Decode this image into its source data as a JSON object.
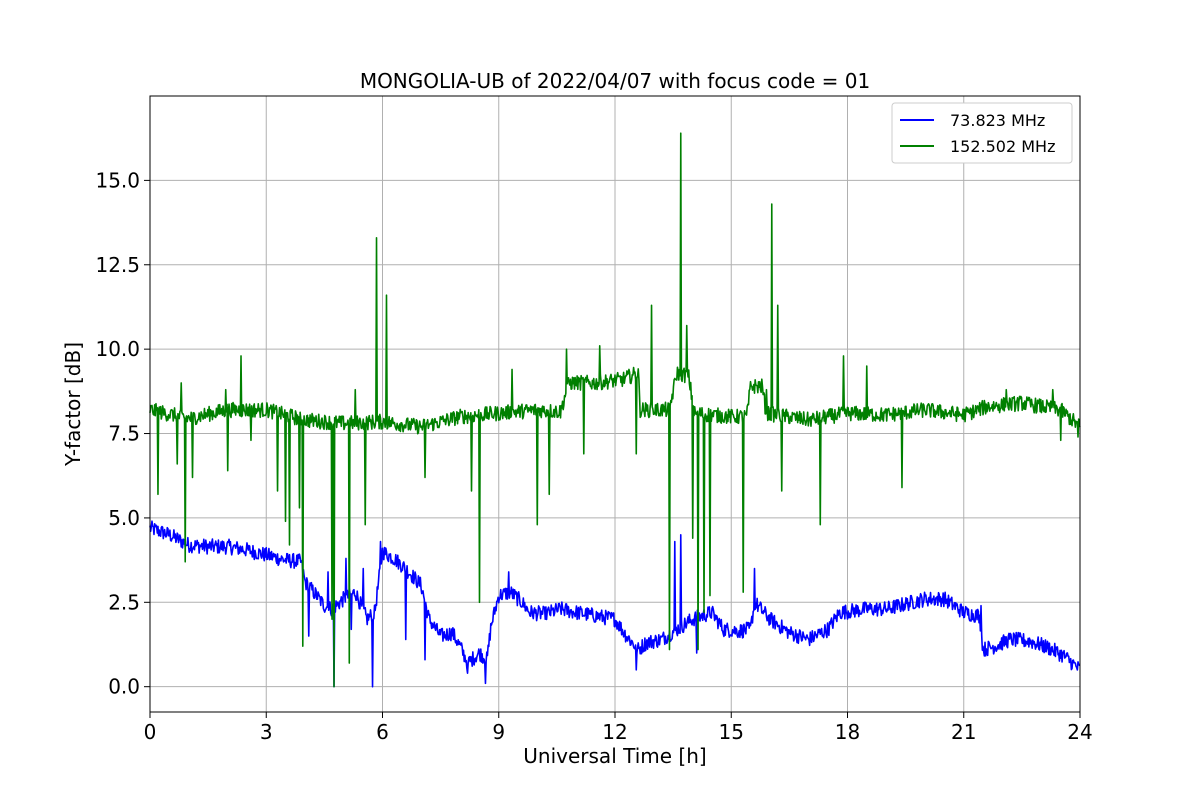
{
  "chart_data": {
    "type": "line",
    "title": "MONGOLIA-UB of 2022/04/07 with focus code = 01",
    "xlabel": "Universal Time [h]",
    "ylabel": "Y-factor [dB]",
    "xlim": [
      0,
      24
    ],
    "ylim": [
      -0.75,
      17.5
    ],
    "xticks": [
      0,
      3,
      6,
      9,
      12,
      15,
      18,
      21,
      24
    ],
    "xtick_labels": [
      "0",
      "3",
      "6",
      "9",
      "12",
      "15",
      "18",
      "21",
      "24"
    ],
    "yticks": [
      0.0,
      2.5,
      5.0,
      7.5,
      10.0,
      12.5,
      15.0
    ],
    "ytick_labels": [
      "0.0",
      "2.5",
      "5.0",
      "7.5",
      "10.0",
      "12.5",
      "15.0"
    ],
    "grid": true,
    "legend": "top-right",
    "series": [
      {
        "name": " 73.823 MHz",
        "color": "#0000ff",
        "baseline": [
          [
            0,
            4.7
          ],
          [
            0.5,
            4.5
          ],
          [
            1,
            4.2
          ],
          [
            1.5,
            4.15
          ],
          [
            2,
            4.15
          ],
          [
            2.5,
            4.05
          ],
          [
            3,
            3.9
          ],
          [
            3.5,
            3.75
          ],
          [
            3.9,
            3.7
          ],
          [
            4.0,
            3.1
          ],
          [
            4.3,
            2.7
          ],
          [
            4.5,
            2.4
          ],
          [
            4.7,
            2.3
          ],
          [
            5.0,
            2.6
          ],
          [
            5.3,
            2.8
          ],
          [
            5.6,
            2.0
          ],
          [
            5.8,
            2.2
          ],
          [
            6.0,
            4.0
          ],
          [
            6.3,
            3.8
          ],
          [
            6.6,
            3.5
          ],
          [
            7.0,
            3.0
          ],
          [
            7.2,
            2.0
          ],
          [
            7.5,
            1.5
          ],
          [
            7.8,
            1.6
          ],
          [
            8.0,
            1.2
          ],
          [
            8.2,
            0.7
          ],
          [
            8.5,
            1.0
          ],
          [
            8.7,
            0.8
          ],
          [
            8.8,
            1.8
          ],
          [
            9.0,
            2.7
          ],
          [
            9.3,
            2.8
          ],
          [
            9.6,
            2.5
          ],
          [
            9.8,
            2.2
          ],
          [
            10.2,
            2.15
          ],
          [
            10.6,
            2.3
          ],
          [
            11.0,
            2.2
          ],
          [
            11.5,
            2.1
          ],
          [
            12.0,
            2.0
          ],
          [
            12.3,
            1.5
          ],
          [
            12.6,
            1.1
          ],
          [
            12.8,
            1.3
          ],
          [
            13.2,
            1.4
          ],
          [
            13.6,
            1.7
          ],
          [
            14.0,
            2.0
          ],
          [
            14.5,
            2.2
          ],
          [
            14.8,
            1.7
          ],
          [
            15.2,
            1.65
          ],
          [
            15.5,
            1.7
          ],
          [
            15.6,
            2.5
          ],
          [
            16.0,
            2.0
          ],
          [
            16.5,
            1.6
          ],
          [
            17.0,
            1.4
          ],
          [
            17.5,
            1.7
          ],
          [
            17.8,
            2.2
          ],
          [
            18.5,
            2.3
          ],
          [
            19.0,
            2.3
          ],
          [
            19.5,
            2.45
          ],
          [
            20.0,
            2.6
          ],
          [
            20.5,
            2.6
          ],
          [
            21.0,
            2.2
          ],
          [
            21.4,
            2.1
          ],
          [
            21.5,
            1.1
          ],
          [
            21.8,
            1.2
          ],
          [
            22.2,
            1.4
          ],
          [
            22.7,
            1.35
          ],
          [
            23.2,
            1.15
          ],
          [
            23.6,
            0.9
          ],
          [
            24,
            0.5
          ]
        ],
        "spikes": [
          [
            4.1,
            1.5
          ],
          [
            4.6,
            3.4
          ],
          [
            4.75,
            0.0
          ],
          [
            5.05,
            3.8
          ],
          [
            5.2,
            1.7
          ],
          [
            5.5,
            3.5
          ],
          [
            5.75,
            0.0
          ],
          [
            5.95,
            4.3
          ],
          [
            6.6,
            1.4
          ],
          [
            7.1,
            0.8
          ],
          [
            8.2,
            0.4
          ],
          [
            8.65,
            0.1
          ],
          [
            9.25,
            3.4
          ],
          [
            10.2,
            2.0
          ],
          [
            12.55,
            0.5
          ],
          [
            13.55,
            4.3
          ],
          [
            13.7,
            4.5
          ],
          [
            14.1,
            1.0
          ],
          [
            15.6,
            3.5
          ],
          [
            21.45,
            2.4
          ]
        ]
      },
      {
        "name": "152.502 MHz",
        "color": "#008000",
        "baseline": [
          [
            0,
            8.2
          ],
          [
            1,
            7.95
          ],
          [
            2,
            8.2
          ],
          [
            3,
            8.2
          ],
          [
            4,
            7.9
          ],
          [
            5,
            7.8
          ],
          [
            6,
            7.85
          ],
          [
            7,
            7.7
          ],
          [
            8,
            8.0
          ],
          [
            9,
            8.1
          ],
          [
            10,
            8.2
          ],
          [
            10.6,
            8.15
          ],
          [
            10.8,
            9.0
          ],
          [
            11.5,
            9.0
          ],
          [
            12.2,
            9.1
          ],
          [
            12.6,
            9.3
          ],
          [
            12.65,
            8.2
          ],
          [
            13.4,
            8.2
          ],
          [
            13.6,
            9.3
          ],
          [
            13.9,
            9.2
          ],
          [
            14.05,
            8.1
          ],
          [
            15.0,
            8.0
          ],
          [
            15.4,
            8.0
          ],
          [
            15.5,
            8.9
          ],
          [
            15.8,
            8.9
          ],
          [
            15.9,
            8.1
          ],
          [
            17,
            7.9
          ],
          [
            18,
            8.1
          ],
          [
            19,
            8.05
          ],
          [
            20,
            8.2
          ],
          [
            21,
            8.05
          ],
          [
            21.6,
            8.3
          ],
          [
            22.5,
            8.4
          ],
          [
            23.5,
            8.2
          ],
          [
            24,
            7.7
          ]
        ],
        "spikes": [
          [
            0.2,
            5.7
          ],
          [
            0.7,
            6.6
          ],
          [
            0.8,
            9.0
          ],
          [
            0.9,
            3.7
          ],
          [
            1.1,
            6.2
          ],
          [
            1.95,
            8.8
          ],
          [
            2.0,
            6.4
          ],
          [
            2.35,
            9.8
          ],
          [
            2.6,
            7.3
          ],
          [
            3.3,
            5.8
          ],
          [
            3.5,
            4.9
          ],
          [
            3.6,
            4.2
          ],
          [
            3.85,
            5.3
          ],
          [
            3.95,
            1.2
          ],
          [
            4.7,
            2.0
          ],
          [
            4.75,
            0.0
          ],
          [
            5.15,
            0.7
          ],
          [
            5.3,
            8.8
          ],
          [
            5.55,
            4.8
          ],
          [
            5.85,
            13.3
          ],
          [
            6.1,
            11.6
          ],
          [
            7.1,
            6.2
          ],
          [
            8.3,
            5.8
          ],
          [
            8.5,
            2.5
          ],
          [
            9.35,
            9.4
          ],
          [
            10.0,
            4.8
          ],
          [
            10.3,
            5.7
          ],
          [
            10.75,
            10.0
          ],
          [
            11.2,
            6.9
          ],
          [
            11.6,
            10.1
          ],
          [
            12.55,
            6.9
          ],
          [
            12.95,
            11.3
          ],
          [
            13.4,
            1.1
          ],
          [
            13.7,
            16.4
          ],
          [
            13.85,
            10.7
          ],
          [
            14.0,
            4.4
          ],
          [
            14.15,
            1.1
          ],
          [
            14.3,
            2.2
          ],
          [
            14.45,
            2.7
          ],
          [
            15.3,
            2.8
          ],
          [
            15.9,
            8.8
          ],
          [
            16.05,
            14.3
          ],
          [
            16.2,
            11.3
          ],
          [
            16.3,
            5.8
          ],
          [
            17.3,
            4.8
          ],
          [
            17.9,
            9.8
          ],
          [
            18.5,
            9.5
          ],
          [
            19.4,
            5.9
          ],
          [
            22.1,
            8.8
          ],
          [
            23.3,
            8.8
          ],
          [
            23.5,
            7.3
          ],
          [
            23.95,
            7.4
          ]
        ]
      }
    ]
  }
}
